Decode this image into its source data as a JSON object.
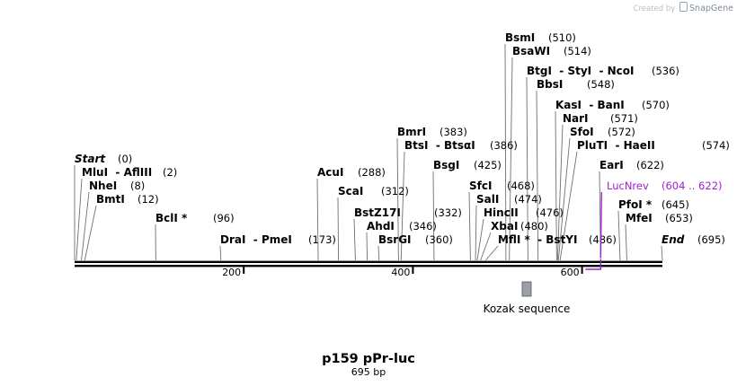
{
  "credit": {
    "prefix": "Created by",
    "brand": "SnapGene"
  },
  "map": {
    "name": "p159 pPr-luc",
    "length_label": "695 bp",
    "length_bp": 695,
    "axis_ticks": [
      "200",
      "400",
      "600"
    ],
    "colors": {
      "enzyme": "#000000",
      "primer": "#a020d0",
      "feature": "#9aa0a8",
      "leader": "#707070"
    }
  },
  "sites": [
    {
      "label": "Start",
      "pos": "(0)",
      "bp": 0,
      "italic": true
    },
    {
      "label": "MluI  - AflIII",
      "pos": "(2)",
      "bp": 2
    },
    {
      "label": "NheI",
      "pos": "(8)",
      "bp": 8
    },
    {
      "label": "BmtI",
      "pos": "(12)",
      "bp": 12
    },
    {
      "label": "BclI *",
      "pos": "(96)",
      "bp": 96
    },
    {
      "label": "DraI  - PmeI",
      "pos": "(173)",
      "bp": 173
    },
    {
      "label": "AcuI",
      "pos": "(288)",
      "bp": 288
    },
    {
      "label": "ScaI",
      "pos": "(312)",
      "bp": 312
    },
    {
      "label": "BstZ17I",
      "pos": "(332)",
      "bp": 332
    },
    {
      "label": "AhdI",
      "pos": "(346)",
      "bp": 346
    },
    {
      "label": "BsrGI",
      "pos": "(360)",
      "bp": 360
    },
    {
      "label": "BmrI",
      "pos": "(383)",
      "bp": 383
    },
    {
      "label": "BtsI  - BtsαI",
      "pos": "(386)",
      "bp": 386
    },
    {
      "label": "BsgI",
      "pos": "(425)",
      "bp": 425
    },
    {
      "label": "SfcI",
      "pos": "(468)",
      "bp": 468
    },
    {
      "label": "SalI",
      "pos": "(474)",
      "bp": 474
    },
    {
      "label": "HincII",
      "pos": "(476)",
      "bp": 476
    },
    {
      "label": "XbaI",
      "pos": "(480)",
      "bp": 480
    },
    {
      "label": "MflI *  - BstYI",
      "pos": "(486)",
      "bp": 486
    },
    {
      "label": "BsmI",
      "pos": "(510)",
      "bp": 510
    },
    {
      "label": "BsaWI",
      "pos": "(514)",
      "bp": 514
    },
    {
      "label": "BtgI  - StyI  - NcoI",
      "pos": "(536)",
      "bp": 536
    },
    {
      "label": "BbsI",
      "pos": "(548)",
      "bp": 548
    },
    {
      "label": "KasI  - BanI",
      "pos": "(570)",
      "bp": 570
    },
    {
      "label": "NarI",
      "pos": "(571)",
      "bp": 571
    },
    {
      "label": "SfoI",
      "pos": "(572)",
      "bp": 572
    },
    {
      "label": "PluTI  - HaeII",
      "pos": "(574)",
      "bp": 574
    },
    {
      "label": "EarI",
      "pos": "(622)",
      "bp": 622
    },
    {
      "label": "PfoI *",
      "pos": "(645)",
      "bp": 645
    },
    {
      "label": "MfeI",
      "pos": "(653)",
      "bp": 653
    },
    {
      "label": "End",
      "pos": "(695)",
      "bp": 695,
      "italic": true
    }
  ],
  "primer": {
    "label": "LucNrev",
    "pos": "(604 .. 622)",
    "start": 604,
    "end": 622
  },
  "feature": {
    "label": "Kozak sequence"
  }
}
